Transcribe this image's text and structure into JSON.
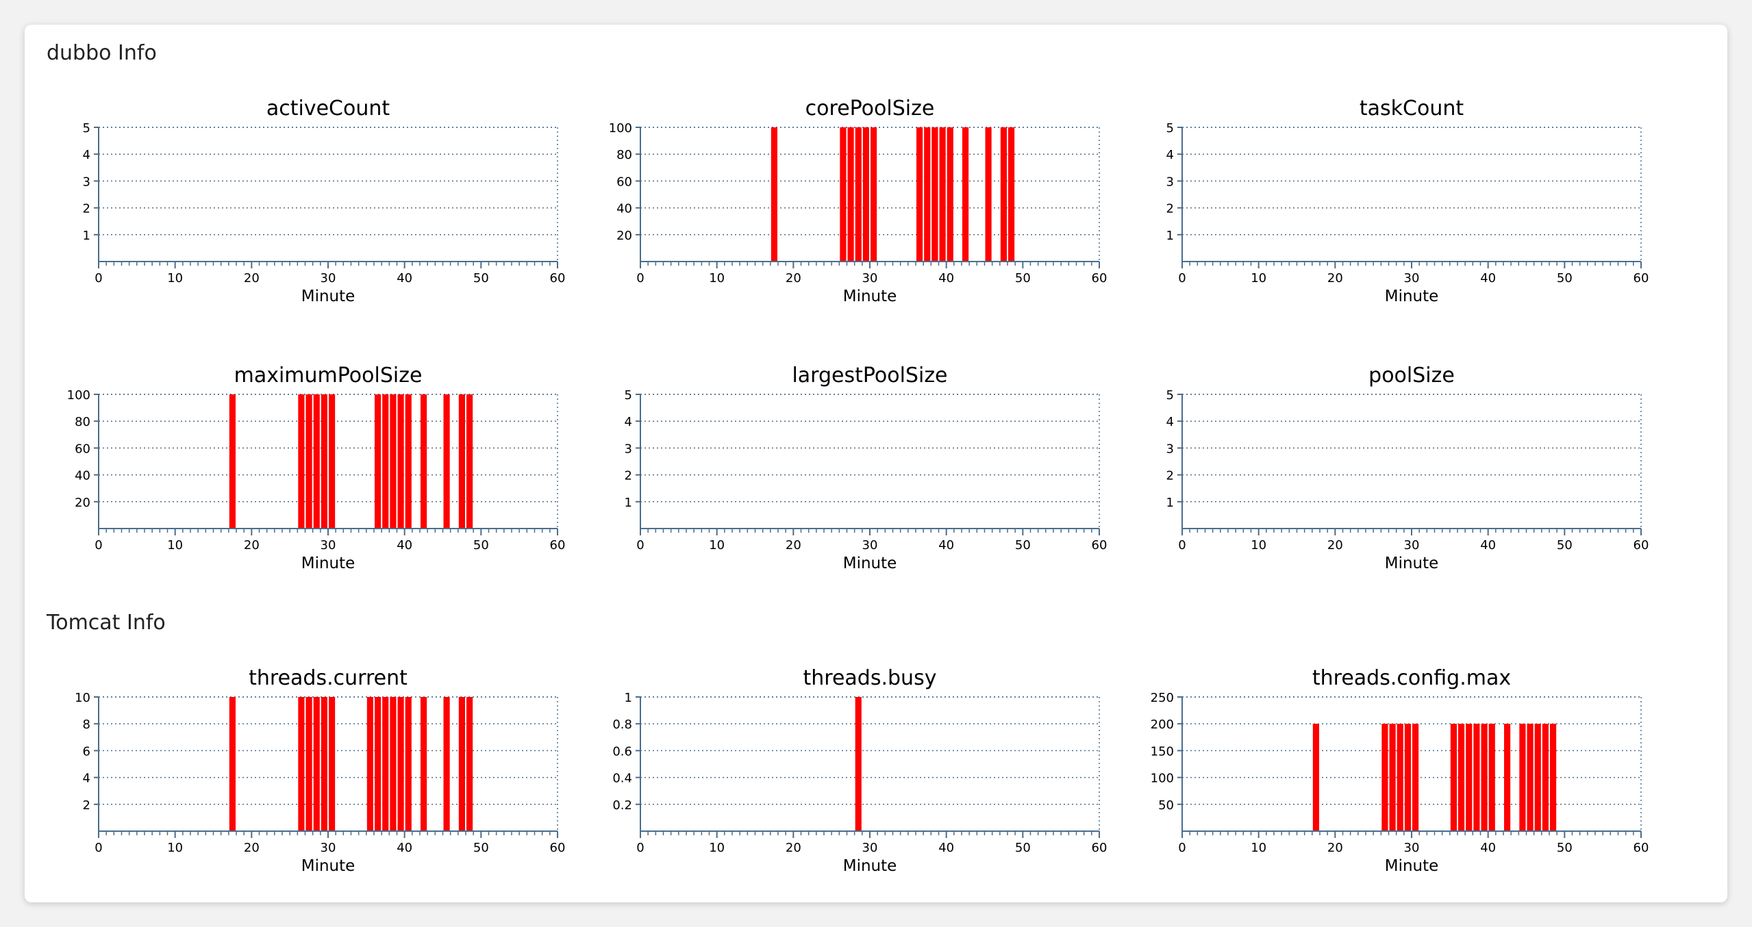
{
  "sections": [
    {
      "title": "dubbo Info"
    },
    {
      "title": "Tomcat Info"
    }
  ],
  "colors": {
    "bar": "#ff0000",
    "axis": "#4a6d8c",
    "grid": "#4a6d8c"
  },
  "chart_data": [
    {
      "type": "bar",
      "title": "activeCount",
      "xlabel": "Minute",
      "ylabel": "",
      "xlim": [
        0,
        60
      ],
      "ylim": [
        0,
        5
      ],
      "x_ticks": [
        "0",
        "10",
        "20",
        "30",
        "40",
        "50",
        "60"
      ],
      "y_ticks": [
        "1",
        "2",
        "3",
        "4",
        "5"
      ],
      "grid": true,
      "x": [],
      "values": []
    },
    {
      "type": "bar",
      "title": "corePoolSize",
      "xlabel": "Minute",
      "ylabel": "",
      "xlim": [
        0,
        60
      ],
      "ylim": [
        0,
        100
      ],
      "x_ticks": [
        "0",
        "10",
        "20",
        "30",
        "40",
        "50",
        "60"
      ],
      "y_ticks": [
        "20",
        "40",
        "60",
        "80",
        "100"
      ],
      "grid": true,
      "x": [
        17,
        26,
        27,
        28,
        29,
        30,
        36,
        37,
        38,
        39,
        40,
        42,
        45,
        47,
        48
      ],
      "values": [
        100,
        100,
        100,
        100,
        100,
        100,
        100,
        100,
        100,
        100,
        100,
        100,
        100,
        100,
        100
      ]
    },
    {
      "type": "bar",
      "title": "taskCount",
      "xlabel": "Minute",
      "ylabel": "",
      "xlim": [
        0,
        60
      ],
      "ylim": [
        0,
        5
      ],
      "x_ticks": [
        "0",
        "10",
        "20",
        "30",
        "40",
        "50",
        "60"
      ],
      "y_ticks": [
        "1",
        "2",
        "3",
        "4",
        "5"
      ],
      "grid": true,
      "x": [],
      "values": []
    },
    {
      "type": "bar",
      "title": "maximumPoolSize",
      "xlabel": "Minute",
      "ylabel": "",
      "xlim": [
        0,
        60
      ],
      "ylim": [
        0,
        100
      ],
      "x_ticks": [
        "0",
        "10",
        "20",
        "30",
        "40",
        "50",
        "60"
      ],
      "y_ticks": [
        "20",
        "40",
        "60",
        "80",
        "100"
      ],
      "grid": true,
      "x": [
        17,
        26,
        27,
        28,
        29,
        30,
        36,
        37,
        38,
        39,
        40,
        42,
        45,
        47,
        48
      ],
      "values": [
        100,
        100,
        100,
        100,
        100,
        100,
        100,
        100,
        100,
        100,
        100,
        100,
        100,
        100,
        100
      ]
    },
    {
      "type": "bar",
      "title": "largestPoolSize",
      "xlabel": "Minute",
      "ylabel": "",
      "xlim": [
        0,
        60
      ],
      "ylim": [
        0,
        5
      ],
      "x_ticks": [
        "0",
        "10",
        "20",
        "30",
        "40",
        "50",
        "60"
      ],
      "y_ticks": [
        "1",
        "2",
        "3",
        "4",
        "5"
      ],
      "grid": true,
      "x": [],
      "values": []
    },
    {
      "type": "bar",
      "title": "poolSize",
      "xlabel": "Minute",
      "ylabel": "",
      "xlim": [
        0,
        60
      ],
      "ylim": [
        0,
        5
      ],
      "x_ticks": [
        "0",
        "10",
        "20",
        "30",
        "40",
        "50",
        "60"
      ],
      "y_ticks": [
        "1",
        "2",
        "3",
        "4",
        "5"
      ],
      "grid": true,
      "x": [],
      "values": []
    },
    {
      "type": "bar",
      "title": "threads.current",
      "xlabel": "Minute",
      "ylabel": "",
      "xlim": [
        0,
        60
      ],
      "ylim": [
        0,
        10
      ],
      "x_ticks": [
        "0",
        "10",
        "20",
        "30",
        "40",
        "50",
        "60"
      ],
      "y_ticks": [
        "2",
        "4",
        "6",
        "8",
        "10"
      ],
      "grid": true,
      "x": [
        17,
        26,
        27,
        28,
        29,
        30,
        35,
        36,
        37,
        38,
        39,
        40,
        42,
        45,
        47,
        48
      ],
      "values": [
        10,
        10,
        10,
        10,
        10,
        10,
        10,
        10,
        10,
        10,
        10,
        10,
        10,
        10,
        10,
        10
      ]
    },
    {
      "type": "bar",
      "title": "threads.busy",
      "xlabel": "Minute",
      "ylabel": "",
      "xlim": [
        0,
        60
      ],
      "ylim": [
        0,
        1
      ],
      "x_ticks": [
        "0",
        "10",
        "20",
        "30",
        "40",
        "50",
        "60"
      ],
      "y_ticks": [
        "0.2",
        "0.4",
        "0.6",
        "0.8",
        "1"
      ],
      "grid": true,
      "x": [
        28
      ],
      "values": [
        1
      ]
    },
    {
      "type": "bar",
      "title": "threads.config.max",
      "xlabel": "Minute",
      "ylabel": "",
      "xlim": [
        0,
        60
      ],
      "ylim": [
        0,
        250
      ],
      "x_ticks": [
        "0",
        "10",
        "20",
        "30",
        "40",
        "50",
        "60"
      ],
      "y_ticks": [
        "50",
        "100",
        "150",
        "200",
        "250"
      ],
      "grid": true,
      "x": [
        17,
        26,
        27,
        28,
        29,
        30,
        35,
        36,
        37,
        38,
        39,
        40,
        42,
        44,
        45,
        46,
        47,
        48
      ],
      "values": [
        200,
        200,
        200,
        200,
        200,
        200,
        200,
        200,
        200,
        200,
        200,
        200,
        200,
        200,
        200,
        200,
        200,
        200
      ]
    }
  ]
}
